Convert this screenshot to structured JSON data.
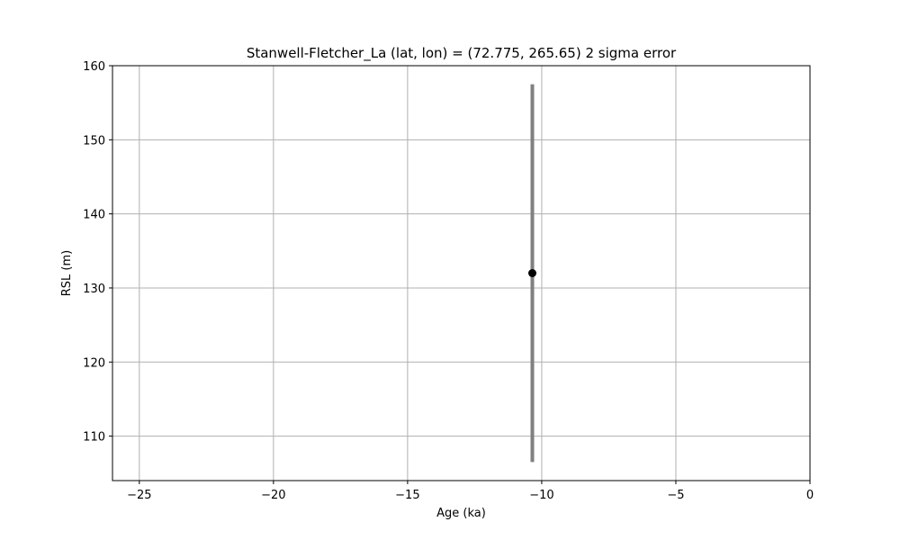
{
  "chart_data": {
    "type": "scatter",
    "title": "Stanwell-Fletcher_La (lat, lon) = (72.775, 265.65)  2 sigma error",
    "xlabel": "Age (ka)",
    "ylabel": "RSL (m)",
    "xlim": [
      -26,
      0
    ],
    "ylim": [
      104,
      160
    ],
    "xticks": [
      -25,
      -20,
      -15,
      -10,
      -5,
      0
    ],
    "xtick_labels": [
      "−25",
      "−20",
      "−15",
      "−10",
      "−5",
      "0"
    ],
    "yticks": [
      110,
      120,
      130,
      140,
      150,
      160
    ],
    "ytick_labels": [
      "110",
      "120",
      "130",
      "140",
      "150",
      "160"
    ],
    "grid": true,
    "legend": "none",
    "points": [
      {
        "x": -10.35,
        "y": 132,
        "y_low": 106.5,
        "y_high": 157.5
      }
    ],
    "colors": {
      "marker": "#000000",
      "errorbar": "#808080",
      "grid": "#b0b0b0"
    }
  }
}
